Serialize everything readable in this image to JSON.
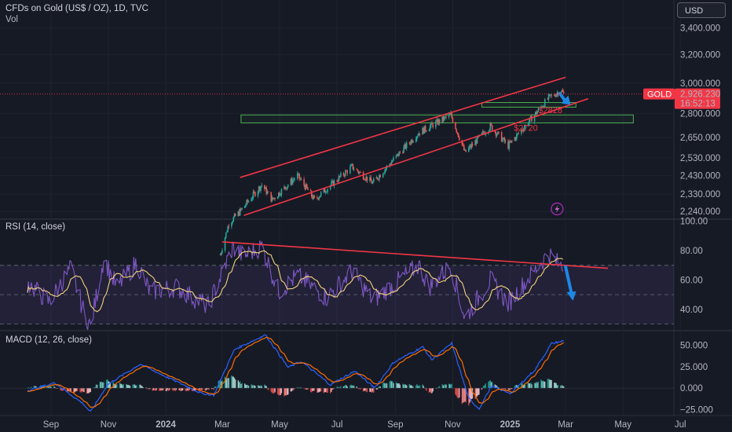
{
  "header": {
    "title": "CFDs on Gold (US$ / OZ), 1D, TVC",
    "sub": "Vol",
    "currency_button": "USD"
  },
  "colors": {
    "background": "#161a25",
    "up": "#26a69a",
    "down": "#ef5350",
    "trend": "#f23645",
    "zone": "#4caf50",
    "rsi_line": "#7e57c2",
    "rsi_ma": "#f3d27a",
    "macd_line": "#2962ff",
    "signal_line": "#ff6d00",
    "arrow": "#1e88e5"
  },
  "chart_data": [
    {
      "type": "candlestick",
      "title": "CFDs on Gold (US$ / OZ), 1D, TVC",
      "y_ticks": [
        "3,400.000",
        "3,200.000",
        "3,000.000",
        "2,800.000",
        "2,650.000",
        "2,530.000",
        "2,430.000",
        "2,330.000",
        "2,240.000"
      ],
      "y_tick_values": [
        3400,
        3200,
        3000,
        2800,
        2650,
        2530,
        2430,
        2330,
        2240
      ],
      "scale": "log",
      "ylim": [
        2205,
        3560
      ],
      "x_ticks": [
        "Sep",
        "Nov",
        "2024",
        "Mar",
        "May",
        "Jul",
        "Sep",
        "Nov",
        "2025",
        "Mar",
        "May",
        "Jul"
      ],
      "price_waypoints": [
        [
          "2024-02-28",
          2030
        ],
        [
          "2024-03-08",
          2180
        ],
        [
          "2024-03-20",
          2240
        ],
        [
          "2024-04-12",
          2380
        ],
        [
          "2024-04-23",
          2300
        ],
        [
          "2024-05-20",
          2430
        ],
        [
          "2024-06-07",
          2300
        ],
        [
          "2024-07-17",
          2480
        ],
        [
          "2024-08-08",
          2390
        ],
        [
          "2024-09-26",
          2680
        ],
        [
          "2024-10-30",
          2790
        ],
        [
          "2024-11-14",
          2560
        ],
        [
          "2024-12-11",
          2720
        ],
        [
          "2024-12-30",
          2600
        ],
        [
          "2025-01-24",
          2770
        ],
        [
          "2025-02-11",
          2900
        ],
        [
          "2025-02-24",
          2950
        ],
        [
          "2025-02-27",
          2926
        ]
      ],
      "last_price_label": "GOLD",
      "last_price": "2,926.230",
      "countdown": "16:52:13",
      "annotations": [
        {
          "label": "$2828",
          "value": 2828
        },
        {
          "label": "$2720",
          "value": 2720
        }
      ],
      "channel_upper": [
        [
          "2024-03-20",
          2420
        ],
        [
          "2025-03-01",
          3040
        ]
      ],
      "channel_lower": [
        [
          "2024-03-24",
          2220
        ],
        [
          "2025-03-25",
          2895
        ]
      ],
      "zones": [
        {
          "start": "2024-03-21",
          "end": "2025-05-12",
          "low": 2740,
          "high": 2790
        },
        {
          "start": "2024-12-02",
          "end": "2025-03-12",
          "low": 2840,
          "high": 2870
        }
      ]
    },
    {
      "type": "line",
      "title": "RSI (14, close)",
      "y_ticks": [
        "100.00",
        "80.00",
        "60.00",
        "40.00"
      ],
      "y_tick_values": [
        100,
        80,
        60,
        40
      ],
      "ylim": [
        26,
        102
      ],
      "levels": [
        70,
        50,
        30
      ],
      "rsi_waypoints": [
        [
          "2023-08-07",
          58
        ],
        [
          "2023-08-30",
          45
        ],
        [
          "2023-09-22",
          68
        ],
        [
          "2023-10-05",
          40
        ],
        [
          "2023-10-13",
          28
        ],
        [
          "2023-10-27",
          75
        ],
        [
          "2023-11-10",
          55
        ],
        [
          "2023-12-01",
          72
        ],
        [
          "2023-12-15",
          52
        ],
        [
          "2024-01-12",
          55
        ],
        [
          "2024-02-15",
          42
        ],
        [
          "2024-03-12",
          82
        ],
        [
          "2024-03-24",
          76
        ],
        [
          "2024-04-12",
          83
        ],
        [
          "2024-04-30",
          52
        ],
        [
          "2024-05-20",
          63
        ],
        [
          "2024-06-20",
          48
        ],
        [
          "2024-07-17",
          66
        ],
        [
          "2024-08-08",
          46
        ],
        [
          "2024-09-26",
          70
        ],
        [
          "2024-10-07",
          55
        ],
        [
          "2024-10-30",
          70
        ],
        [
          "2024-11-14",
          34
        ],
        [
          "2024-12-11",
          60
        ],
        [
          "2024-12-30",
          44
        ],
        [
          "2025-01-24",
          64
        ],
        [
          "2025-02-11",
          78
        ],
        [
          "2025-02-26",
          68
        ]
      ],
      "trendline": [
        [
          "2024-03-01",
          86
        ],
        [
          "2025-04-15",
          68
        ]
      ],
      "arrow": [
        [
          "2025-03-01",
          69
        ],
        [
          "2025-03-08",
          48
        ]
      ]
    },
    {
      "type": "line",
      "title": "MACD (12, 26, close)",
      "y_ticks": [
        "50.000",
        "25.000",
        "0.000",
        "−25.000"
      ],
      "y_tick_values": [
        50,
        25,
        0,
        -25
      ],
      "ylim": [
        -31,
        66
      ],
      "macd_waypoints": [
        [
          "2023-08-07",
          -3
        ],
        [
          "2023-09-05",
          6
        ],
        [
          "2023-10-05",
          -18
        ],
        [
          "2023-10-13",
          -28
        ],
        [
          "2023-10-31",
          4
        ],
        [
          "2023-12-05",
          28
        ],
        [
          "2023-12-27",
          16
        ],
        [
          "2024-02-08",
          -6
        ],
        [
          "2024-02-21",
          -8
        ],
        [
          "2024-03-14",
          45
        ],
        [
          "2024-04-16",
          62
        ],
        [
          "2024-05-10",
          24
        ],
        [
          "2024-05-24",
          31
        ],
        [
          "2024-06-24",
          4
        ],
        [
          "2024-07-20",
          20
        ],
        [
          "2024-08-10",
          0
        ],
        [
          "2024-08-30",
          30
        ],
        [
          "2024-09-30",
          48
        ],
        [
          "2024-10-10",
          33
        ],
        [
          "2024-10-31",
          52
        ],
        [
          "2024-11-18",
          -12
        ],
        [
          "2024-11-29",
          -24
        ],
        [
          "2024-12-12",
          2
        ],
        [
          "2025-01-02",
          -6
        ],
        [
          "2025-01-28",
          22
        ],
        [
          "2025-02-14",
          52
        ],
        [
          "2025-02-27",
          55
        ]
      ]
    }
  ]
}
